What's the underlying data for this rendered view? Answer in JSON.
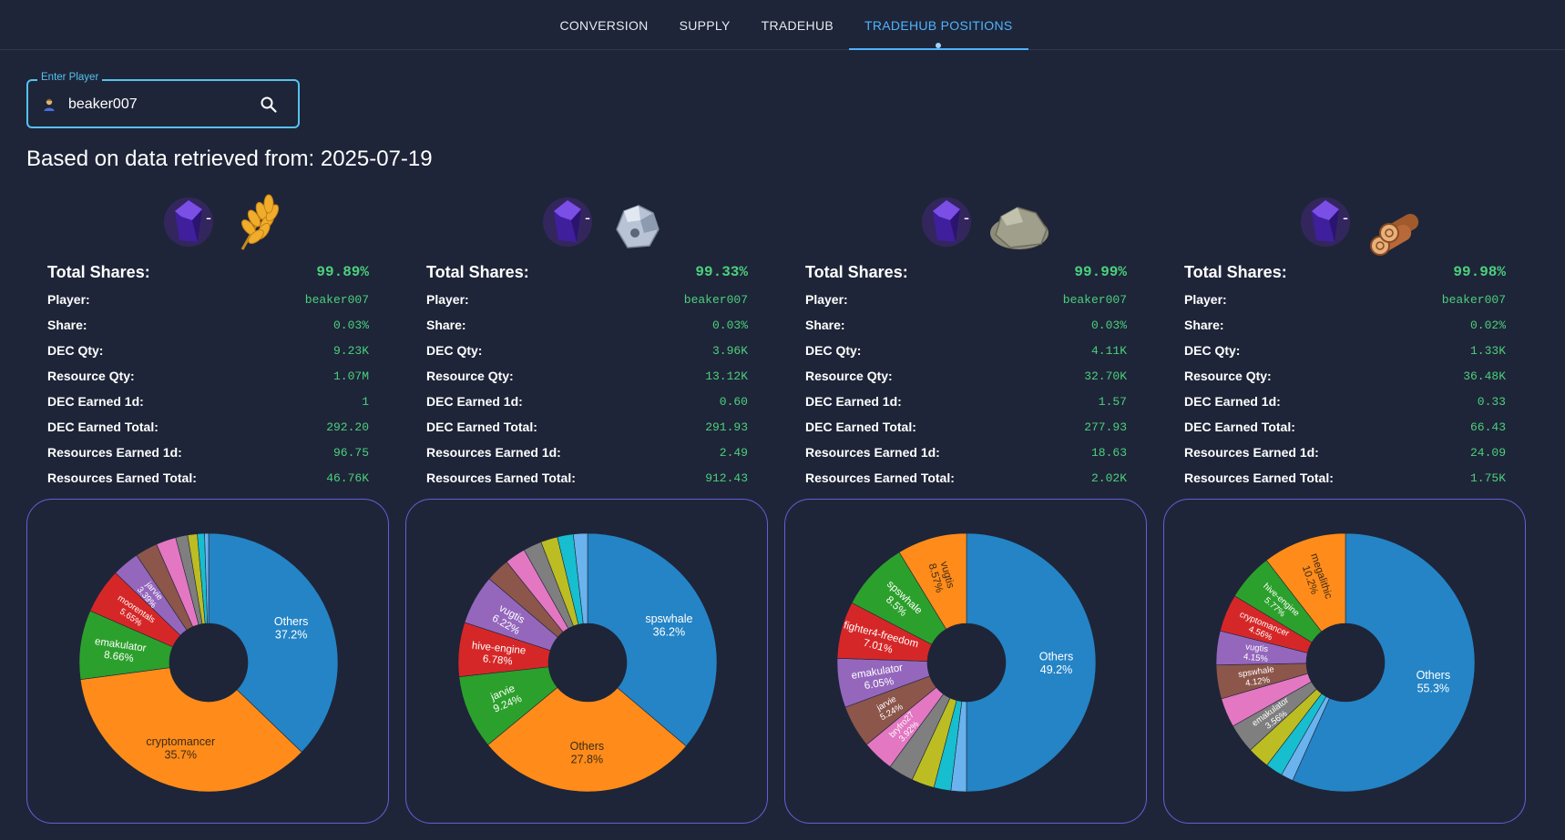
{
  "nav": {
    "tabs": [
      {
        "label": "CONVERSION",
        "active": false
      },
      {
        "label": "SUPPLY",
        "active": false
      },
      {
        "label": "TRADEHUB",
        "active": false
      },
      {
        "label": "TRADEHUB POSITIONS",
        "active": true
      }
    ]
  },
  "player_search": {
    "legend": "Enter Player",
    "value": "beaker007",
    "icon": "search-icon"
  },
  "data_date_text": "Based on data retrieved from: 2025-07-19",
  "colors": {
    "accent": "#4fb3ff",
    "value_green": "#4cd07d",
    "chart_border": "#6b5bd6",
    "background": "#1e2538"
  },
  "panels": [
    {
      "pair_icons": [
        "dec-crystal-icon",
        "grain-icon"
      ],
      "stats": {
        "total_shares_label": "Total Shares:",
        "total_shares": "99.89%",
        "player_label": "Player:",
        "player": "beaker007",
        "share_label": "Share:",
        "share": "0.03%",
        "dec_qty_label": "DEC Qty:",
        "dec_qty": "9.23K",
        "resource_qty_label": "Resource Qty:",
        "resource_qty": "1.07M",
        "dec_earned_1d_label": "DEC Earned 1d:",
        "dec_earned_1d": "1",
        "dec_earned_total_label": "DEC Earned Total:",
        "dec_earned_total": "292.20",
        "resources_earned_1d_label": "Resources Earned 1d:",
        "resources_earned_1d": "96.75",
        "resources_earned_total_label": "Resources Earned Total:",
        "resources_earned_total": "46.76K"
      }
    },
    {
      "pair_icons": [
        "dec-crystal-icon",
        "iron-ore-icon"
      ],
      "stats": {
        "total_shares_label": "Total Shares:",
        "total_shares": "99.33%",
        "player_label": "Player:",
        "player": "beaker007",
        "share_label": "Share:",
        "share": "0.03%",
        "dec_qty_label": "DEC Qty:",
        "dec_qty": "3.96K",
        "resource_qty_label": "Resource Qty:",
        "resource_qty": "13.12K",
        "dec_earned_1d_label": "DEC Earned 1d:",
        "dec_earned_1d": "0.60",
        "dec_earned_total_label": "DEC Earned Total:",
        "dec_earned_total": "291.93",
        "resources_earned_1d_label": "Resources Earned 1d:",
        "resources_earned_1d": "2.49",
        "resources_earned_total_label": "Resources Earned Total:",
        "resources_earned_total": "912.43"
      }
    },
    {
      "pair_icons": [
        "dec-crystal-icon",
        "stone-icon"
      ],
      "stats": {
        "total_shares_label": "Total Shares:",
        "total_shares": "99.99%",
        "player_label": "Player:",
        "player": "beaker007",
        "share_label": "Share:",
        "share": "0.03%",
        "dec_qty_label": "DEC Qty:",
        "dec_qty": "4.11K",
        "resource_qty_label": "Resource Qty:",
        "resource_qty": "32.70K",
        "dec_earned_1d_label": "DEC Earned 1d:",
        "dec_earned_1d": "1.57",
        "dec_earned_total_label": "DEC Earned Total:",
        "dec_earned_total": "277.93",
        "resources_earned_1d_label": "Resources Earned 1d:",
        "resources_earned_1d": "18.63",
        "resources_earned_total_label": "Resources Earned Total:",
        "resources_earned_total": "2.02K"
      }
    },
    {
      "pair_icons": [
        "dec-crystal-icon",
        "wood-logs-icon"
      ],
      "stats": {
        "total_shares_label": "Total Shares:",
        "total_shares": "99.98%",
        "player_label": "Player:",
        "player": "beaker007",
        "share_label": "Share:",
        "share": "0.02%",
        "dec_qty_label": "DEC Qty:",
        "dec_qty": "1.33K",
        "resource_qty_label": "Resource Qty:",
        "resource_qty": "36.48K",
        "dec_earned_1d_label": "DEC Earned 1d:",
        "dec_earned_1d": "0.33",
        "dec_earned_total_label": "DEC Earned Total:",
        "dec_earned_total": "66.43",
        "resources_earned_1d_label": "Resources Earned 1d:",
        "resources_earned_1d": "24.09",
        "resources_earned_total_label": "Resources Earned Total:",
        "resources_earned_total": "1.75K"
      }
    }
  ],
  "chart_data": [
    {
      "type": "pie",
      "hole": true,
      "slices": [
        {
          "label": "Others",
          "value": 37.2,
          "text": "37.2%",
          "color": "#2484c6",
          "lab": true,
          "text_color": "#ffffff"
        },
        {
          "label": "cryptomancer",
          "value": 35.7,
          "text": "35.7%",
          "color": "#ff8c1a",
          "lab": true,
          "text_color": "#3b2a16"
        },
        {
          "label": "emakulator",
          "value": 8.66,
          "text": "8.66%",
          "color": "#2ca02c",
          "lab": true,
          "text_color": "#ffffff"
        },
        {
          "label": "moorentals",
          "value": 5.65,
          "text": "5.65%",
          "color": "#d62728",
          "lab": true,
          "text_color": "#ffffff"
        },
        {
          "label": "jarvie",
          "value": 3.39,
          "text": "3.39%",
          "color": "#9467bd",
          "lab": true,
          "text_color": "#ffffff"
        },
        {
          "label": "",
          "value": 2.8,
          "text": "",
          "color": "#8c564b",
          "lab": false
        },
        {
          "label": "",
          "value": 2.5,
          "text": "",
          "color": "#e377c2",
          "lab": false
        },
        {
          "label": "",
          "value": 1.5,
          "text": "",
          "color": "#7f7f7f",
          "lab": false
        },
        {
          "label": "",
          "value": 1.2,
          "text": "",
          "color": "#bcbd22",
          "lab": false
        },
        {
          "label": "",
          "value": 0.9,
          "text": "",
          "color": "#17becf",
          "lab": false
        },
        {
          "label": "",
          "value": 0.5,
          "text": "",
          "color": "#6bb3ee",
          "lab": false
        }
      ]
    },
    {
      "type": "pie",
      "hole": true,
      "slices": [
        {
          "label": "spswhale",
          "value": 36.2,
          "text": "36.2%",
          "color": "#2484c6",
          "lab": true,
          "text_color": "#ffffff"
        },
        {
          "label": "Others",
          "value": 27.8,
          "text": "27.8%",
          "color": "#ff8c1a",
          "lab": true,
          "text_color": "#3b2a16"
        },
        {
          "label": "jarvie",
          "value": 9.24,
          "text": "9.24%",
          "color": "#2ca02c",
          "lab": true,
          "text_color": "#ffffff"
        },
        {
          "label": "hive-engine",
          "value": 6.78,
          "text": "6.78%",
          "color": "#d62728",
          "lab": true,
          "text_color": "#ffffff"
        },
        {
          "label": "vugtis",
          "value": 6.22,
          "text": "6.22%",
          "color": "#9467bd",
          "lab": true,
          "text_color": "#ffffff"
        },
        {
          "label": "",
          "value": 3.0,
          "text": "",
          "color": "#8c564b",
          "lab": false
        },
        {
          "label": "",
          "value": 2.6,
          "text": "",
          "color": "#e377c2",
          "lab": false
        },
        {
          "label": "",
          "value": 2.3,
          "text": "",
          "color": "#7f7f7f",
          "lab": false
        },
        {
          "label": "",
          "value": 2.1,
          "text": "",
          "color": "#bcbd22",
          "lab": false
        },
        {
          "label": "",
          "value": 2.0,
          "text": "",
          "color": "#17becf",
          "lab": false
        },
        {
          "label": "",
          "value": 1.76,
          "text": "",
          "color": "#6bb3ee",
          "lab": false
        }
      ]
    },
    {
      "type": "pie",
      "hole": true,
      "slices": [
        {
          "label": "Others",
          "value": 49.2,
          "text": "49.2%",
          "color": "#2484c6",
          "lab": true,
          "text_color": "#ffffff"
        },
        {
          "label": "",
          "value": 1.9,
          "text": "",
          "color": "#6bb3ee",
          "lab": false
        },
        {
          "label": "",
          "value": 2.1,
          "text": "",
          "color": "#17becf",
          "lab": false
        },
        {
          "label": "",
          "value": 2.8,
          "text": "",
          "color": "#bcbd22",
          "lab": false
        },
        {
          "label": "",
          "value": 3.1,
          "text": "",
          "color": "#7f7f7f",
          "lab": false
        },
        {
          "label": "bryfro27",
          "value": 3.92,
          "text": "3.92%",
          "color": "#e377c2",
          "lab": true,
          "text_color": "#ffffff"
        },
        {
          "label": "jarvie",
          "value": 5.24,
          "text": "5.24%",
          "color": "#8c564b",
          "lab": true,
          "text_color": "#ffffff"
        },
        {
          "label": "emakulator",
          "value": 6.05,
          "text": "6.05%",
          "color": "#9467bd",
          "lab": true,
          "text_color": "#ffffff"
        },
        {
          "label": "fighter4-freedom",
          "value": 7.01,
          "text": "7.01%",
          "color": "#d62728",
          "lab": true,
          "text_color": "#ffffff"
        },
        {
          "label": "spswhale",
          "value": 8.5,
          "text": "8.5%",
          "color": "#2ca02c",
          "lab": true,
          "text_color": "#ffffff"
        },
        {
          "label": "vugtis",
          "value": 8.57,
          "text": "8.57%",
          "color": "#ff8c1a",
          "lab": true,
          "text_color": "#3b2a16"
        }
      ]
    },
    {
      "type": "pie",
      "hole": true,
      "slices": [
        {
          "label": "Others",
          "value": 55.3,
          "text": "55.3%",
          "color": "#2484c6",
          "lab": true,
          "text_color": "#ffffff"
        },
        {
          "label": "",
          "value": 1.5,
          "text": "",
          "color": "#6bb3ee",
          "lab": false
        },
        {
          "label": "",
          "value": 2.1,
          "text": "",
          "color": "#17becf",
          "lab": false
        },
        {
          "label": "",
          "value": 2.7,
          "text": "",
          "color": "#bcbd22",
          "lab": false
        },
        {
          "label": "emakulator",
          "value": 3.56,
          "text": "3.56%",
          "color": "#7f7f7f",
          "lab": true,
          "text_color": "#ffffff"
        },
        {
          "label": "",
          "value": 3.57,
          "text": "",
          "color": "#e377c2",
          "lab": false
        },
        {
          "label": "spswhale",
          "value": 4.12,
          "text": "4.12%",
          "color": "#8c564b",
          "lab": true,
          "text_color": "#ffffff"
        },
        {
          "label": "vugtis",
          "value": 4.15,
          "text": "4.15%",
          "color": "#9467bd",
          "lab": true,
          "text_color": "#ffffff"
        },
        {
          "label": "cryptomancer",
          "value": 4.56,
          "text": "4.56%",
          "color": "#d62728",
          "lab": true,
          "text_color": "#ffffff"
        },
        {
          "label": "hive-engine",
          "value": 5.77,
          "text": "5.77%",
          "color": "#2ca02c",
          "lab": true,
          "text_color": "#ffffff"
        },
        {
          "label": "megalithic",
          "value": 10.2,
          "text": "10.2%",
          "color": "#ff8c1a",
          "lab": true,
          "text_color": "#3b2a16"
        }
      ]
    }
  ]
}
